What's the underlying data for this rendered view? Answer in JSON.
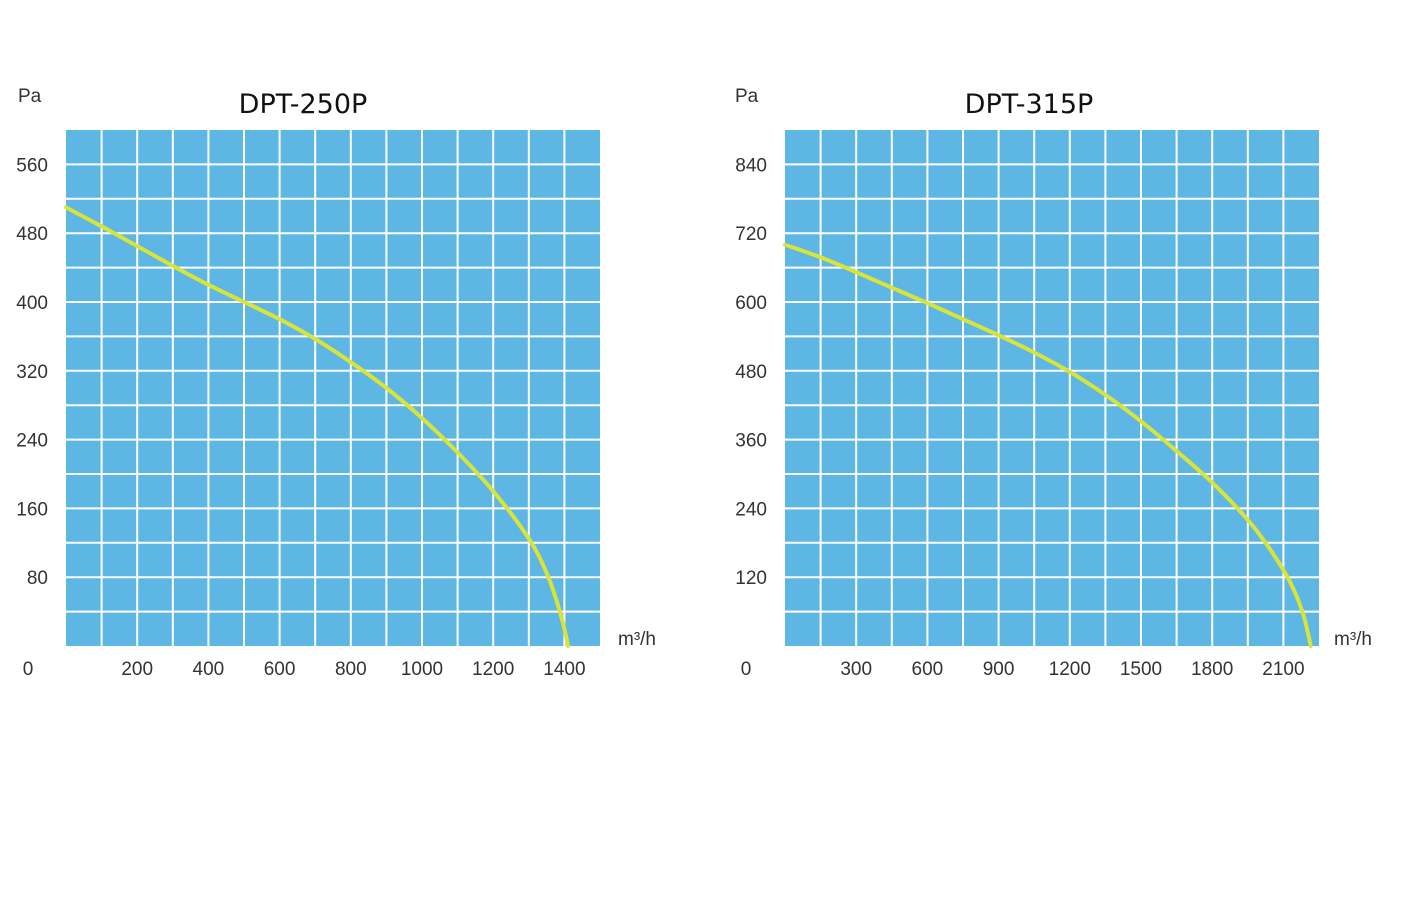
{
  "colors": {
    "plot_background": "#5db6e4",
    "grid": "#ffffff",
    "curve": "#d9e43a"
  },
  "chart_data": [
    {
      "type": "line",
      "title": "DPT-250P",
      "ylabel": "Pa",
      "xlabel": "m³/h",
      "origin_label": "0",
      "xlim": [
        0,
        1500
      ],
      "ylim": [
        0,
        600
      ],
      "x_ticks": [
        200,
        400,
        600,
        800,
        1000,
        1200,
        1400
      ],
      "y_ticks": [
        80,
        160,
        240,
        320,
        400,
        480,
        560
      ],
      "grid": true,
      "series": [
        {
          "x": [
            0,
            100,
            200,
            300,
            400,
            500,
            600,
            700,
            800,
            900,
            1000,
            1100,
            1200,
            1300,
            1350,
            1380,
            1400,
            1410
          ],
          "y": [
            510,
            488,
            465,
            442,
            420,
            400,
            380,
            357,
            330,
            300,
            265,
            225,
            180,
            125,
            85,
            50,
            20,
            0
          ]
        }
      ]
    },
    {
      "type": "line",
      "title": "DPT-315P",
      "ylabel": "Pa",
      "xlabel": "m³/h",
      "origin_label": "0",
      "xlim": [
        0,
        2250
      ],
      "ylim": [
        0,
        900
      ],
      "x_ticks": [
        300,
        600,
        900,
        1200,
        1500,
        1800,
        2100
      ],
      "y_ticks": [
        120,
        240,
        360,
        480,
        600,
        720,
        840
      ],
      "grid": true,
      "series": [
        {
          "x": [
            0,
            150,
            300,
            450,
            600,
            750,
            900,
            1050,
            1200,
            1350,
            1500,
            1650,
            1800,
            1950,
            2050,
            2130,
            2180,
            2205,
            2215
          ],
          "y": [
            700,
            678,
            652,
            625,
            598,
            570,
            542,
            512,
            478,
            438,
            392,
            340,
            285,
            220,
            165,
            110,
            60,
            20,
            0
          ]
        }
      ]
    }
  ]
}
